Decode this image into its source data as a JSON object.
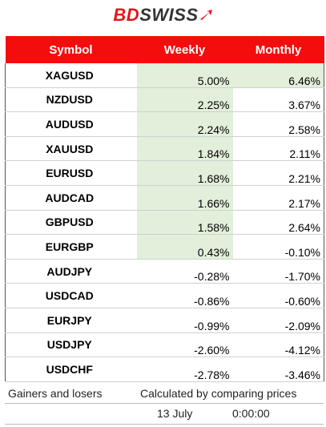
{
  "logo": {
    "part1": "BD",
    "part2": "SWISS"
  },
  "table": {
    "header": [
      "Symbol",
      "Weekly",
      "Monthly"
    ],
    "rows": [
      [
        "XAGUSD",
        "5.00%",
        "6.46%"
      ],
      [
        "NZDUSD",
        "2.25%",
        "3.67%"
      ],
      [
        "AUDUSD",
        "2.24%",
        "2.58%"
      ],
      [
        "XAUUSD",
        "1.84%",
        "2.11%"
      ],
      [
        "EURUSD",
        "1.68%",
        "2.21%"
      ],
      [
        "AUDCAD",
        "1.66%",
        "2.17%"
      ],
      [
        "GBPUSD",
        "1.58%",
        "2.64%"
      ],
      [
        "EURGBP",
        "0.43%",
        "-0.10%"
      ],
      [
        "AUDJPY",
        "-0.28%",
        "-1.70%"
      ],
      [
        "USDCAD",
        "-0.86%",
        "-0.60%"
      ],
      [
        "EURJPY",
        "-0.99%",
        "-2.09%"
      ],
      [
        "USDJPY",
        "-2.60%",
        "-4.12%"
      ],
      [
        "USDCHF",
        "-2.78%",
        "-3.46%"
      ]
    ]
  },
  "footer": {
    "label": "Gainers and losers",
    "note": "Calculated by comparing prices",
    "date": "13 July",
    "time": "0:00:00"
  }
}
